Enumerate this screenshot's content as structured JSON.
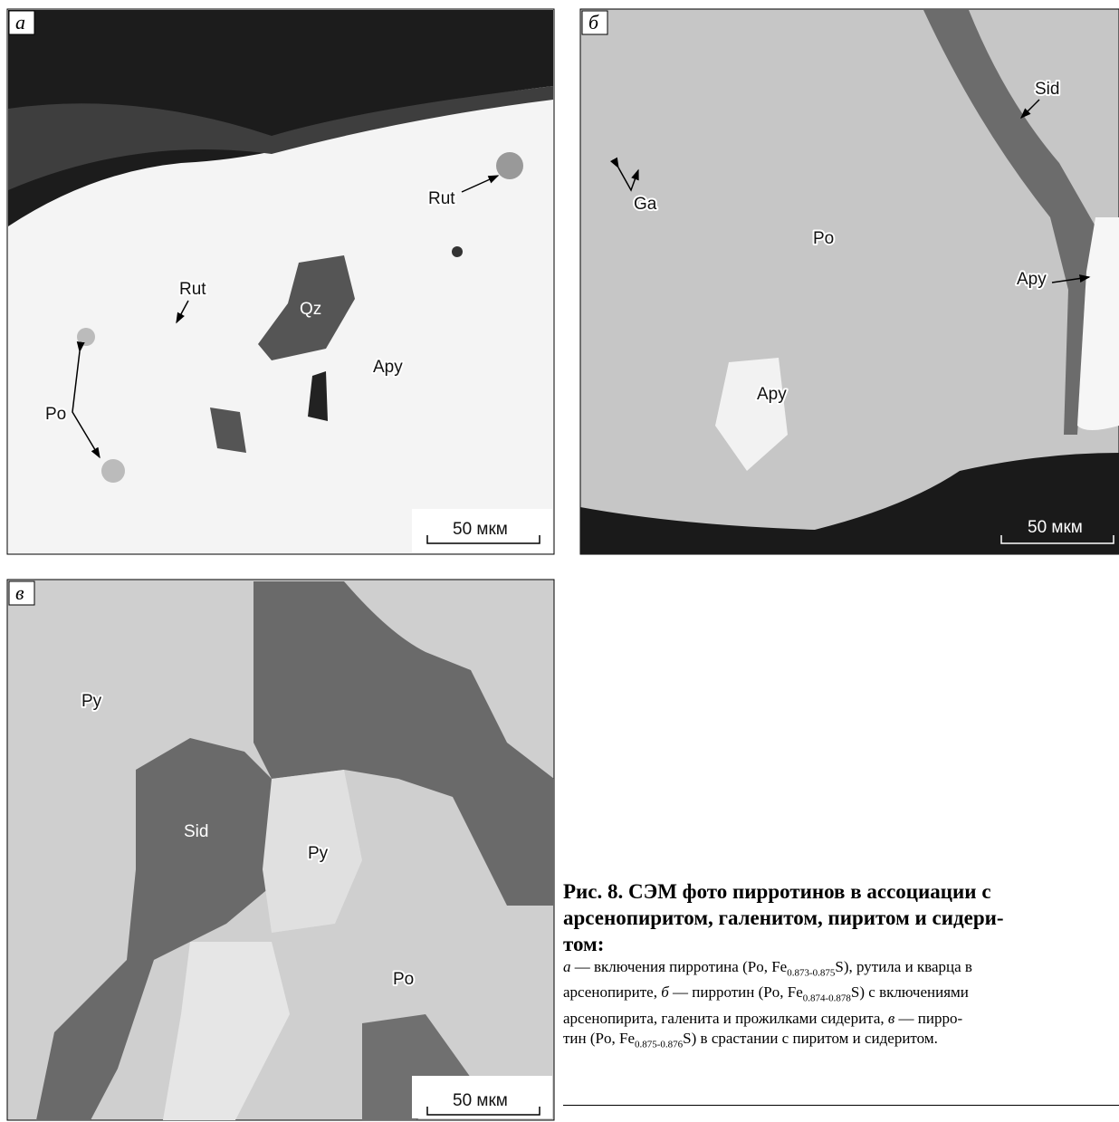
{
  "panels": [
    {
      "letter": "а",
      "scale_bar": "50 мкм",
      "labels": [
        "Rut",
        "Rut",
        "Qz",
        "Apy",
        "Po"
      ]
    },
    {
      "letter": "б",
      "scale_bar": "50 мкм",
      "labels": [
        "Sid",
        "Ga",
        "Po",
        "Apy",
        "Apy"
      ]
    },
    {
      "letter": "в",
      "scale_bar": "50 мкм",
      "labels": [
        "Py",
        "Sid",
        "Py",
        "Po"
      ]
    }
  ],
  "caption": {
    "title_lines": [
      "Рис. 8. СЭМ фото пирротинов в ассоциации с",
      "арсенопиритом, галенитом, пиритом и сидери-",
      "том:"
    ],
    "body": [
      [
        "а",
        " — включения пирротина (Po, Fe",
        "0.873-0.875",
        "S), рутила и кварца в"
      ],
      [
        "арсенопирите, ",
        "б",
        " — пирротин (Po, Fe",
        "0.874-0.878",
        "S) с включениями"
      ],
      [
        "арсенопирита, галенита и прожилками сидерита, ",
        "в",
        " — пирро-"
      ],
      [
        "тин (Po, Fe",
        "0.875-0.876",
        "S) в срастании с пиритом и сидеритом."
      ]
    ]
  }
}
